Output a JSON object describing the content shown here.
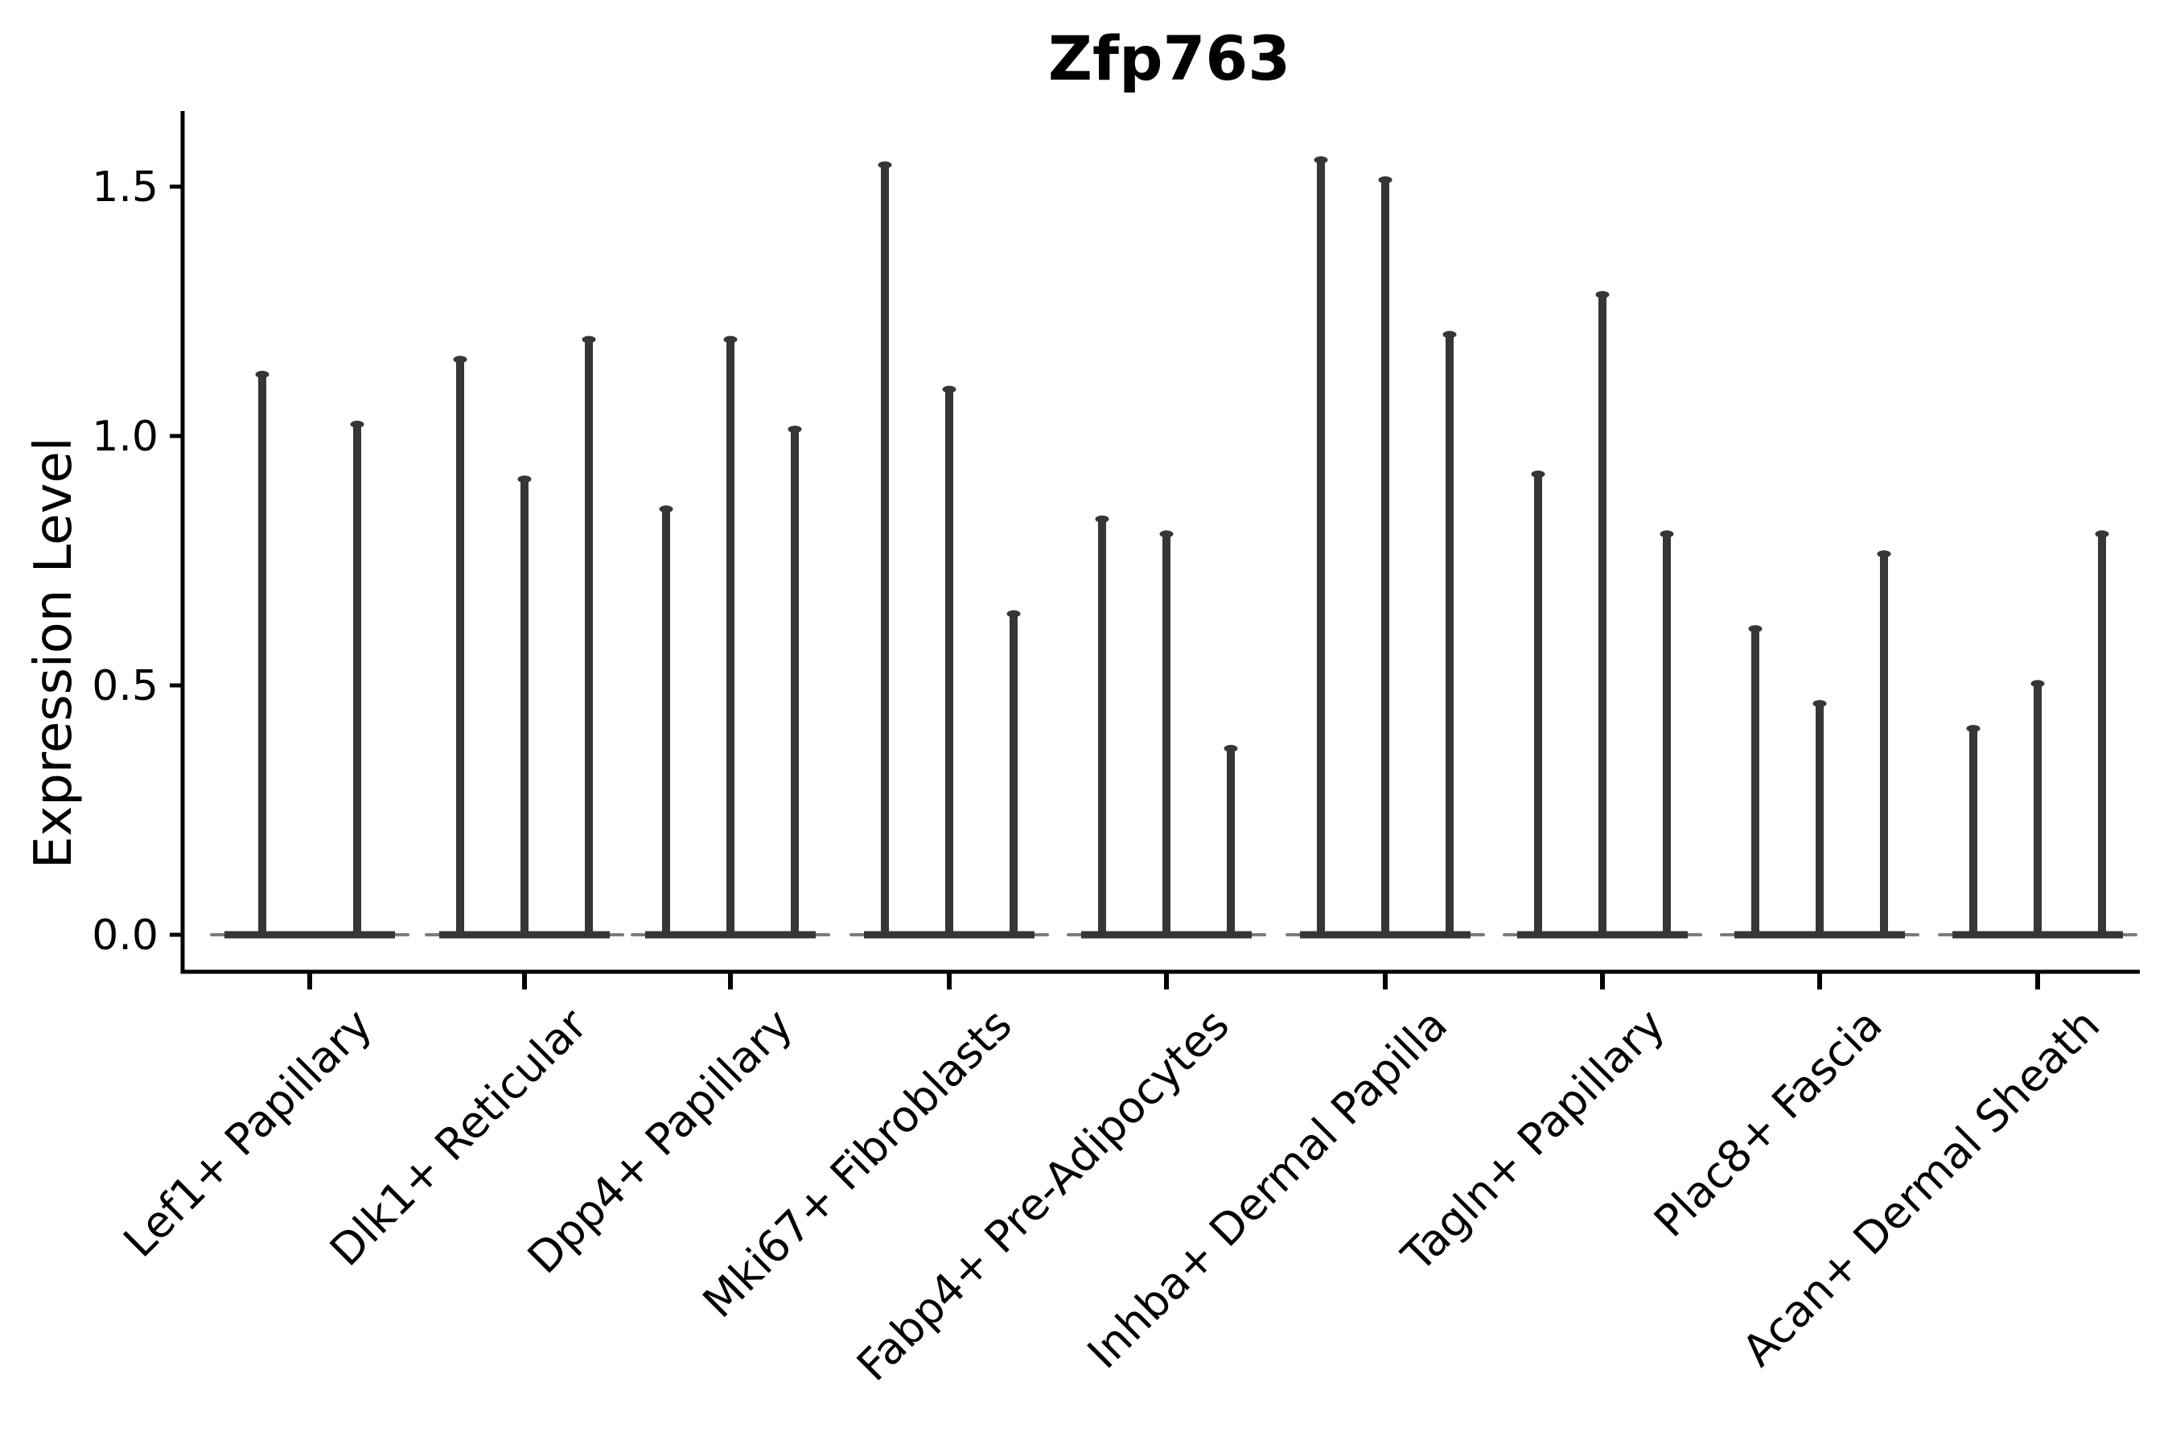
{
  "figure": {
    "background": "#ffffff"
  },
  "chart_data": {
    "type": "violin",
    "title": "Zfp763",
    "xlabel": "",
    "ylabel": "Expression Level",
    "ylim": [
      0,
      1.67
    ],
    "grid": false,
    "legend": "none",
    "violin_color": "#363636",
    "axis_color": "#000000",
    "text_color": "#000000",
    "yticks": [
      {
        "label": "0.0",
        "value": 0.0
      },
      {
        "label": "0.5",
        "value": 0.5
      },
      {
        "label": "1.0",
        "value": 1.0
      },
      {
        "label": "1.5",
        "value": 1.5
      }
    ],
    "categories": [
      "Lef1+ Papillary",
      "Dlk1+ Reticular",
      "Dpp4+ Papillary",
      "Mki67+ Fibroblasts",
      "Fabp4+ Pre-Adipocytes",
      "Inhba+ Dermal Papilla",
      "Tagln+ Papillary",
      "Plac8+ Fascia",
      "Acan+ Dermal Sheath"
    ],
    "series": [
      {
        "category": "Lef1+ Papillary",
        "spike_peaks": [
          1.13,
          1.03
        ]
      },
      {
        "category": "Dlk1+ Reticular",
        "spike_peaks": [
          1.16,
          0.92,
          1.2
        ]
      },
      {
        "category": "Dpp4+ Papillary",
        "spike_peaks": [
          0.86,
          1.2,
          1.02
        ]
      },
      {
        "category": "Mki67+ Fibroblasts",
        "spike_peaks": [
          1.55,
          1.1,
          0.65
        ]
      },
      {
        "category": "Fabp4+ Pre-Adipocytes",
        "spike_peaks": [
          0.84,
          0.81,
          0.38
        ]
      },
      {
        "category": "Inhba+ Dermal Papilla",
        "spike_peaks": [
          1.56,
          1.52,
          1.21
        ]
      },
      {
        "category": "Tagln+ Papillary",
        "spike_peaks": [
          0.93,
          1.29,
          0.81
        ]
      },
      {
        "category": "Plac8+ Fascia",
        "spike_peaks": [
          0.62,
          0.47,
          0.77
        ]
      },
      {
        "category": "Acan+ Dermal Sheath",
        "spike_peaks": [
          0.42,
          0.51,
          0.81
        ]
      }
    ]
  }
}
